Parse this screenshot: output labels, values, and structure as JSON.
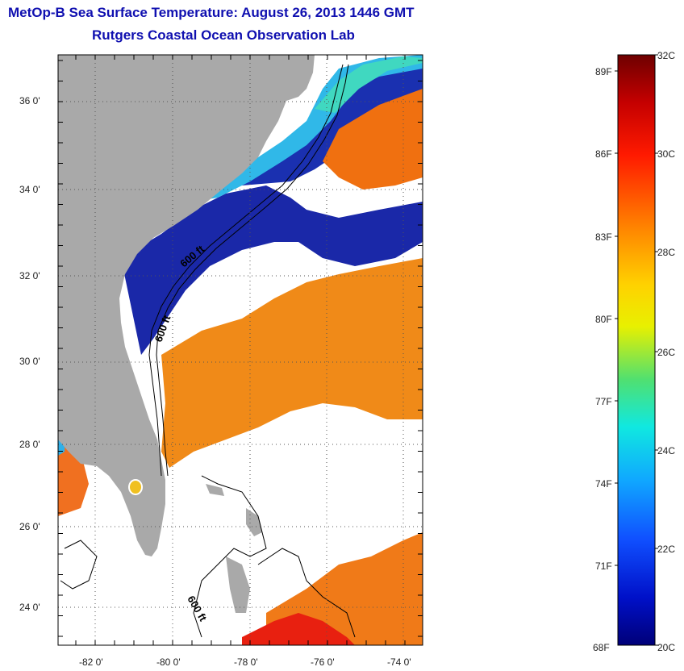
{
  "header": {
    "title_line1": "MetOp-B Sea Surface Temperature:  August 26, 2013 1446 GMT",
    "title_line2": "Rutgers Coastal Ocean Observation Lab"
  },
  "map": {
    "lat_labels": [
      "36 0'",
      "34 0'",
      "32 0'",
      "30 0'",
      "28 0'",
      "26 0'",
      "24 0'"
    ],
    "lon_labels": [
      "-82 0'",
      "-80 0'",
      "-78 0'",
      "-76 0'",
      "-74 0'"
    ],
    "contour_labels": [
      "600 ft",
      "600 ft",
      "600 ft"
    ],
    "colors": {
      "land": "#a9a9a9",
      "cloud": "#ffffff",
      "warm": "#f07a10",
      "hot": "#e02010",
      "cold": "#10209a",
      "cool": "#28a0f0",
      "mid": "#40e0c0"
    }
  },
  "colorbar": {
    "f_labels": [
      "89F",
      "86F",
      "83F",
      "80F",
      "77F",
      "74F",
      "71F",
      "68F"
    ],
    "c_labels": [
      "32C",
      "30C",
      "28C",
      "26C",
      "24C",
      "22C",
      "20C"
    ],
    "range_c": [
      20,
      32
    ],
    "colors": [
      "#7a0000",
      "#c80000",
      "#ff2000",
      "#ff8000",
      "#ffd000",
      "#e0f000",
      "#60e060",
      "#20e0d0",
      "#20a0ff",
      "#2040ff",
      "#0010c0",
      "#000080"
    ]
  }
}
